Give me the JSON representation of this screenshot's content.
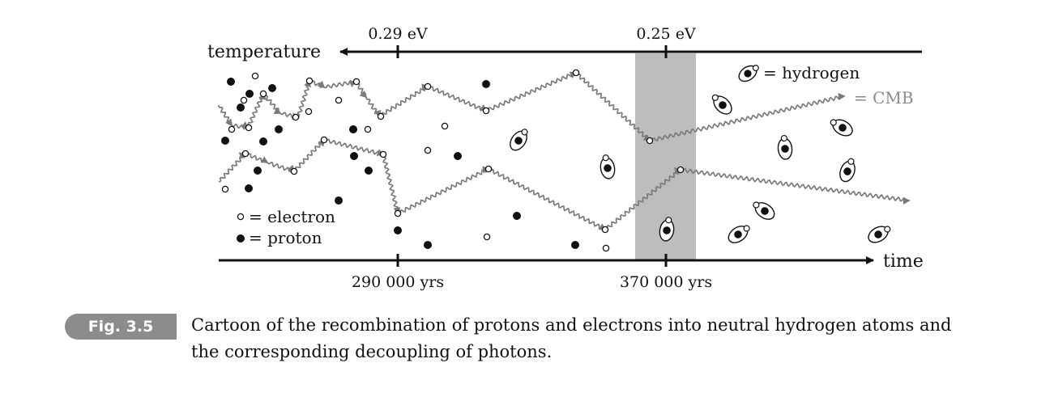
{
  "figure": {
    "top_axis": {
      "label": "temperature",
      "ticks": [
        {
          "label": "0.29 eV"
        },
        {
          "label": "0.25 eV"
        }
      ]
    },
    "bottom_axis": {
      "label": "time",
      "ticks": [
        {
          "label": "290 000 yrs"
        },
        {
          "label": "370 000 yrs"
        }
      ]
    },
    "legend": {
      "electron": "= electron",
      "proton": "= proton",
      "hydrogen": "= hydrogen",
      "cmb": "= CMB"
    },
    "colors": {
      "ink": "#111111",
      "photon": "#7a7a7a",
      "decoupling_band": "#bdbdbd",
      "badge": "#8c8c8c"
    }
  },
  "caption": {
    "label": "Fig. 3.5",
    "text": "Cartoon of the recombination of protons and electrons into neutral hydrogen atoms and the corresponding decoupling of photons."
  }
}
